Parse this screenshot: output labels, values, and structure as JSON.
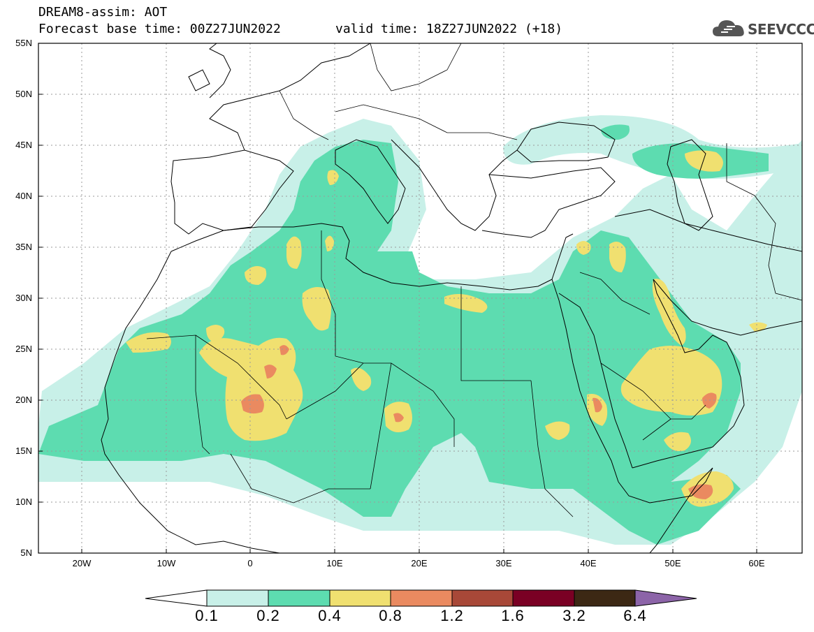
{
  "header": {
    "title_line1": "DREAM8-assim: AOT",
    "base_time": "Forecast base time: 00Z27JUN2022",
    "valid_time": "valid time: 18Z27JUN2022 (+18)",
    "logo_text": "SEEVCCC"
  },
  "map": {
    "projection": "lat-lon",
    "lon_range": [
      -25,
      65
    ],
    "lat_range": [
      5,
      55
    ],
    "y_ticks": [
      "55N",
      "50N",
      "45N",
      "40N",
      "35N",
      "30N",
      "25N",
      "20N",
      "15N",
      "10N",
      "5N"
    ],
    "x_ticks": [
      "20W",
      "10W",
      "0",
      "10E",
      "20E",
      "30E",
      "40E",
      "50E",
      "60E"
    ]
  },
  "colorbar": {
    "labels": [
      "0.1",
      "0.2",
      "0.4",
      "0.8",
      "1.2",
      "1.6",
      "3.2",
      "6.4"
    ],
    "colors": [
      "#ffffff",
      "#c8f0e8",
      "#5ddcb0",
      "#f0e070",
      "#ea8a60",
      "#a84838",
      "#7a0024",
      "#3c2814",
      "#8c64a8"
    ]
  },
  "colors": {
    "level_0_1": "#c8f0e8",
    "level_0_2": "#5ddcb0",
    "level_0_4": "#f0e070",
    "level_0_8": "#ea8a60",
    "level_1_2": "#a84838"
  }
}
